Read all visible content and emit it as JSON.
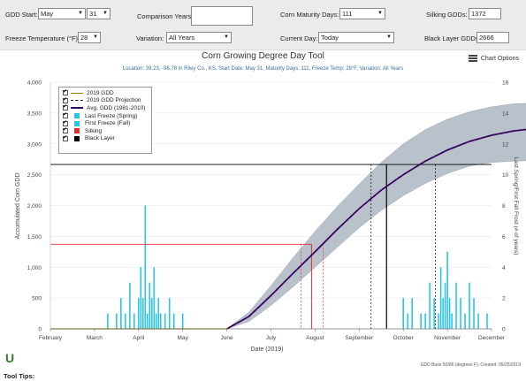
{
  "controls": {
    "gdd_start_label": "GDD Start:",
    "gdd_start_month": "May",
    "gdd_start_day": "31",
    "comparison_years_label": "Comparison Years:",
    "comparison_years_value": "",
    "corn_maturity_label": "Corn Maturity Days:",
    "corn_maturity_value": "111",
    "silking_label": "Silking GDDs:",
    "silking_value": "1372",
    "freeze_temp_label": "Freeze Temperature (°F):",
    "freeze_temp_value": "28",
    "variation_label": "Variation:",
    "variation_value": "All Years",
    "current_day_label": "Current Day:",
    "current_day_value": "Today",
    "black_layer_label": "Black Layer GDDs:",
    "black_layer_value": "2666"
  },
  "chart_options_label": "Chart Options",
  "tool_tips_label": "Tool Tips:",
  "logo_text": "U",
  "footer_note": "GDD Base 50/86 (degrees F); Created: 05/25/2019",
  "colors": {
    "gdd_2019": "#8b8000",
    "projection": "#111111",
    "avg": "#4b0082",
    "last_freeze": "#2ec4e6",
    "first_freeze": "#2ec4e6",
    "silking": "#e03030",
    "black_layer": "#000000",
    "band": "#b9c1cb"
  },
  "chart_data": {
    "type": "line",
    "title": "Corn Growing Degree Day Tool",
    "subtitle": "Location: 39.23, -96.78 in Riley Co., KS, Start Date: May 31, Maturity Days: 111, Freeze Temp: 28°F, Variation: All Years",
    "xlabel": "Date (2019)",
    "ylabel": "Accumulated Corn GDD",
    "y2label": "Last Spring/First Fall Frost (# of years)",
    "x_ticks": [
      "February",
      "March",
      "April",
      "May",
      "June",
      "July",
      "August",
      "September",
      "October",
      "November",
      "December"
    ],
    "ylim": [
      0,
      4000
    ],
    "y_ticks": [
      "0",
      "500",
      "1,000",
      "1,500",
      "2,000",
      "2,500",
      "3,000",
      "3,500",
      "4,000"
    ],
    "y2lim": [
      0,
      16
    ],
    "y2_ticks": [
      "0",
      "2",
      "4",
      "6",
      "8",
      "10",
      "12",
      "14",
      "16"
    ],
    "legend": [
      {
        "label": "2019 GDD",
        "style": "line",
        "color": "#8b8000"
      },
      {
        "label": "2019 GDD Projection",
        "style": "dash",
        "color": "#111111"
      },
      {
        "label": "Avg. GDD (1981-2010)",
        "style": "dashpurple",
        "color": "#4b0082"
      },
      {
        "label": "Last Freeze (Spring)",
        "style": "box",
        "color": "#2ec4e6"
      },
      {
        "label": "First Freeze (Fall)",
        "style": "box",
        "color": "#2ec4e6"
      },
      {
        "label": "Silking",
        "style": "box",
        "color": "#e03030"
      },
      {
        "label": "Black Layer",
        "style": "box",
        "color": "#000000"
      }
    ],
    "gdd_2019": {
      "x_month": [
        1.0,
        5.0
      ],
      "y": [
        0,
        0
      ]
    },
    "projection": {
      "x_month": [
        5.0,
        5.5,
        6.0,
        6.5,
        7.0,
        7.5,
        8.0,
        8.5,
        9.0,
        9.5,
        10.0,
        10.5,
        11.0,
        11.5,
        12.0
      ],
      "y": [
        0,
        200,
        540,
        900,
        1250,
        1610,
        1950,
        2250,
        2500,
        2720,
        2900,
        3040,
        3140,
        3210,
        3250
      ]
    },
    "band": {
      "x_month": [
        5.0,
        5.5,
        6.0,
        6.5,
        7.0,
        7.5,
        8.0,
        8.5,
        9.0,
        9.5,
        10.0,
        10.5,
        11.0,
        11.5,
        12.0
      ],
      "lower": [
        0,
        120,
        380,
        680,
        1000,
        1320,
        1640,
        1920,
        2160,
        2360,
        2520,
        2640,
        2700,
        2720,
        2730
      ],
      "upper": [
        0,
        270,
        700,
        1150,
        1580,
        1980,
        2350,
        2700,
        3000,
        3230,
        3400,
        3520,
        3600,
        3650,
        3660
      ]
    },
    "silking_gdd": 1372,
    "silking_x_month": 6.92,
    "silking_range_x_month": [
      6.68,
      7.18
    ],
    "black_layer_gdd": 2666,
    "black_layer_x_month": 8.62,
    "black_layer_range_x_month": [
      8.27,
      9.73
    ],
    "last_freeze_spring": {
      "x_month": [
        2.3,
        2.5,
        2.6,
        2.7,
        2.8,
        2.9,
        3.0,
        3.05,
        3.1,
        3.15,
        3.2,
        3.25,
        3.3,
        3.35,
        3.4,
        3.45,
        3.5,
        3.6,
        3.7,
        3.8,
        4.0
      ],
      "years": [
        1,
        1,
        2,
        1,
        3,
        1,
        2,
        4,
        2,
        8,
        1,
        3,
        2,
        4,
        1,
        2,
        1,
        1,
        2,
        1,
        1
      ]
    },
    "first_freeze_fall": {
      "x_month": [
        9.0,
        9.1,
        9.2,
        9.4,
        9.5,
        9.6,
        9.7,
        9.8,
        9.85,
        9.9,
        9.95,
        10.0,
        10.05,
        10.1,
        10.2,
        10.3,
        10.4,
        10.5,
        10.6,
        10.7,
        10.9
      ],
      "years": [
        2,
        1,
        2,
        1,
        1,
        3,
        2,
        1,
        4,
        2,
        3,
        5,
        2,
        1,
        3,
        2,
        1,
        3,
        2,
        1,
        1
      ]
    }
  }
}
